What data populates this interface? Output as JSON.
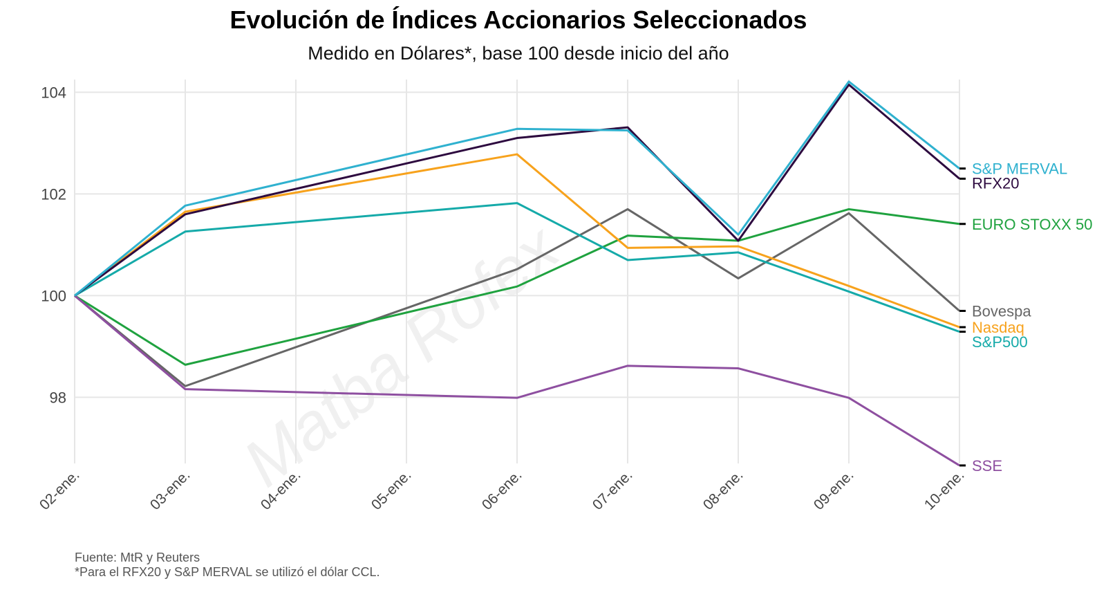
{
  "colors": {
    "grid": "#e6e6e6",
    "tick_text": "#444444",
    "watermark": "#f0f0f0"
  },
  "watermark": "Matba Rofex",
  "footnotes": {
    "source": "Fuente: MtR y Reuters",
    "ccl": "*Para el RFX20 y S&P MERVAL se utilizó el dólar CCL."
  },
  "chart_data": {
    "type": "line",
    "title": "Evolución de Índices Accionarios Seleccionados",
    "subtitle": "Medido en Dólares*, base 100 desde inicio del año",
    "xlabel": "",
    "ylabel": "",
    "x": [
      "02-ene.",
      "03-ene.",
      "04-ene.",
      "05-ene.",
      "06-ene.",
      "07-ene.",
      "08-ene.",
      "09-ene.",
      "10-ene."
    ],
    "y_ticks": [
      98,
      100,
      102,
      104
    ],
    "ylim": [
      96.7,
      104.25
    ],
    "grid": true,
    "legend": "right-end labels",
    "series": [
      {
        "name": "Bovespa",
        "color": "#666666",
        "points": [
          [
            0,
            100.0
          ],
          [
            1,
            98.22
          ],
          [
            4,
            100.52
          ],
          [
            5,
            101.7
          ],
          [
            6,
            100.34
          ],
          [
            7,
            101.62
          ],
          [
            8,
            99.7
          ]
        ]
      },
      {
        "name": "EURO STOXX 50",
        "color": "#1fa23f",
        "points": [
          [
            0,
            100.0
          ],
          [
            1,
            98.64
          ],
          [
            4,
            100.18
          ],
          [
            5,
            101.18
          ],
          [
            6,
            101.08
          ],
          [
            7,
            101.7
          ],
          [
            8,
            101.41
          ]
        ]
      },
      {
        "name": "SSE",
        "color": "#8e4fa0",
        "points": [
          [
            0,
            100.0
          ],
          [
            1,
            98.16
          ],
          [
            4,
            97.99
          ],
          [
            5,
            98.62
          ],
          [
            6,
            98.57
          ],
          [
            7,
            97.99
          ],
          [
            8,
            96.66
          ]
        ]
      },
      {
        "name": "Nasdaq",
        "color": "#f7a21c",
        "points": [
          [
            0,
            100.0
          ],
          [
            1,
            101.65
          ],
          [
            4,
            102.78
          ],
          [
            5,
            100.94
          ],
          [
            6,
            100.97
          ],
          [
            7,
            100.19
          ],
          [
            8,
            99.38
          ]
        ]
      },
      {
        "name": "S&P500",
        "color": "#15aaa9",
        "points": [
          [
            0,
            100.0
          ],
          [
            1,
            101.26
          ],
          [
            4,
            101.82
          ],
          [
            5,
            100.7
          ],
          [
            6,
            100.85
          ],
          [
            7,
            100.08
          ],
          [
            8,
            99.29
          ]
        ]
      },
      {
        "name": "RFX20",
        "color": "#2d0a3f",
        "points": [
          [
            0,
            100.0
          ],
          [
            1,
            101.6
          ],
          [
            4,
            103.1
          ],
          [
            5,
            103.31
          ],
          [
            6,
            101.08
          ],
          [
            7,
            104.15
          ],
          [
            8,
            102.3
          ]
        ]
      },
      {
        "name": "S&P MERVAL",
        "color": "#2fb1cf",
        "points": [
          [
            0,
            100.0
          ],
          [
            1,
            101.77
          ],
          [
            4,
            103.28
          ],
          [
            5,
            103.25
          ],
          [
            6,
            101.2
          ],
          [
            7,
            104.21
          ],
          [
            8,
            102.5
          ]
        ]
      }
    ]
  }
}
